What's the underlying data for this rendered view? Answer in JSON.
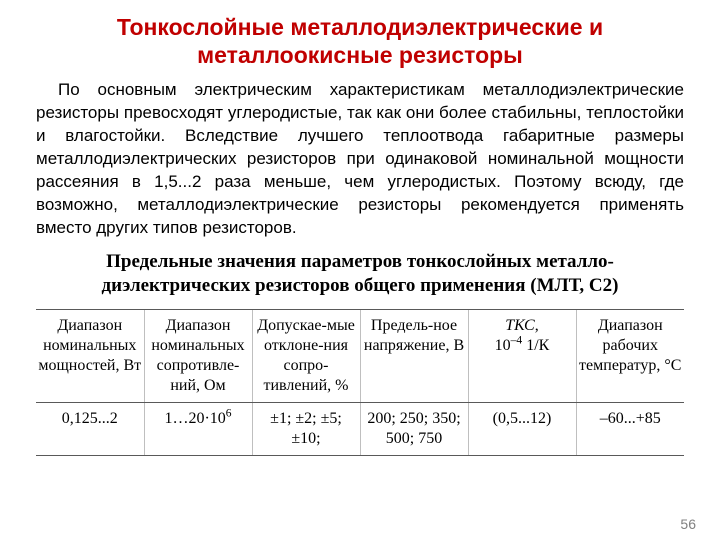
{
  "title": "Тонкослойные металлодиэлектрические и металлоокисные резисторы",
  "paragraph": "По основным электрическим характеристикам металлодиэлектрические резисторы превосходят углеродистые, так как они более стабильны, теплостойки и влагостойки. Вследствие лучшего теплоотвода габаритные размеры металлодиэлектрических резисторов при одинаковой номинальной мощности рассеяния в 1,5...2 раза меньше, чем углеродистых. Поэтому всюду, где возможно, металлодиэлектрические резисторы рекомендуется применять вместо других типов резисторов.",
  "subheading": "Предельные значения параметров тонкослойных металло-диэлектрических  резисторов общего применения (МЛТ, С2)",
  "table": {
    "headers": {
      "c0": "Диапазон номинальных мощностей, Вт",
      "c1": "Диапазон номинальных сопротивле-ний, Ом",
      "c2": "Допускае-мые отклоне-ния сопро-тивлений, %",
      "c3": "Предель-ное напряжение, В",
      "c4_html": "<i>ТКС</i>,<br>10<span class=\"sup\">–4</span> 1/К",
      "c5": "Диапазон рабочих температур, °С"
    },
    "row": {
      "c0": "0,125...2",
      "c1_html": "1…20·10<span class=\"sup\">6</span>",
      "c2": "±1; ±2; ±5; ±10;",
      "c3": "200; 250; 350; 500; 750",
      "c4": "(0,5...12)",
      "c5": "–60...+85"
    }
  },
  "page_number": "56",
  "colors": {
    "title_color": "#c00000",
    "text_color": "#000000",
    "border_color": "#595959",
    "vline_color": "#bfbfbf",
    "background": "#ffffff",
    "pagenum_color": "#808080"
  }
}
